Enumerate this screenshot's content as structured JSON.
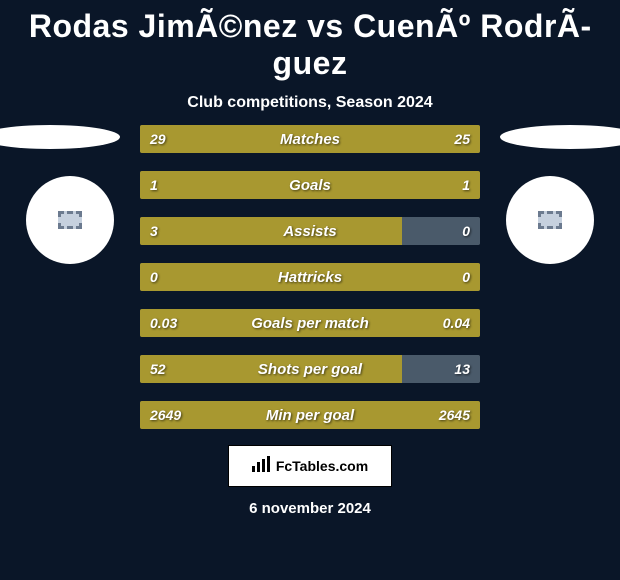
{
  "title": "Rodas JimÃ©nez vs CuenÃº RodrÃ­guez",
  "subtitle": "Club competitions, Season 2024",
  "date": "6 november 2024",
  "footer": {
    "brand": "FcTables.com"
  },
  "colors": {
    "background": "#0a1628",
    "bar_background": "#3a3a3a",
    "left_fill": "#a89830",
    "right_fill": "#4a5a6a",
    "text": "#ffffff"
  },
  "stats": [
    {
      "label": "Matches",
      "left_value": "29",
      "right_value": "25",
      "left_pct": 100,
      "right_pct": 0
    },
    {
      "label": "Goals",
      "left_value": "1",
      "right_value": "1",
      "left_pct": 100,
      "right_pct": 0
    },
    {
      "label": "Assists",
      "left_value": "3",
      "right_value": "0",
      "left_pct": 77,
      "right_pct": 23
    },
    {
      "label": "Hattricks",
      "left_value": "0",
      "right_value": "0",
      "left_pct": 100,
      "right_pct": 0
    },
    {
      "label": "Goals per match",
      "left_value": "0.03",
      "right_value": "0.04",
      "left_pct": 100,
      "right_pct": 0
    },
    {
      "label": "Shots per goal",
      "left_value": "52",
      "right_value": "13",
      "left_pct": 77,
      "right_pct": 23
    },
    {
      "label": "Min per goal",
      "left_value": "2649",
      "right_value": "2645",
      "left_pct": 100,
      "right_pct": 0
    }
  ]
}
